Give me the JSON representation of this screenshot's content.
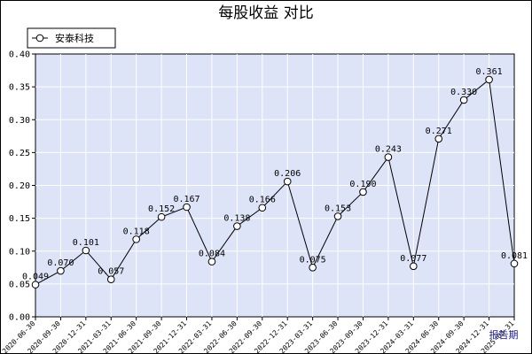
{
  "chart_data": {
    "type": "line",
    "title": "每股收益  对比",
    "unit_label": "报告期",
    "legend": {
      "placement": "top-left",
      "entries": [
        "安泰科技"
      ]
    },
    "ylim": [
      0,
      0.4
    ],
    "yticks": [
      "0.00",
      "0.05",
      "0.10",
      "0.15",
      "0.20",
      "0.25",
      "0.30",
      "0.35",
      "0.40"
    ],
    "grid": true,
    "colors": {
      "plot_bg": "#dde4f8",
      "grid": "#ffffff",
      "line": "#000000"
    },
    "categories": [
      "2020-06-30",
      "2020-09-30",
      "2020-12-31",
      "2021-03-31",
      "2021-06-30",
      "2021-09-30",
      "2021-12-31",
      "2022-03-31",
      "2022-06-30",
      "2022-09-30",
      "2022-12-31",
      "2023-03-31",
      "2023-06-30",
      "2023-09-30",
      "2023-12-31",
      "2024-03-31",
      "2024-06-30",
      "2024-09-30",
      "2024-12-31",
      "2025-03-31"
    ],
    "series": [
      {
        "name": "安泰科技",
        "values": [
          0.049,
          0.07,
          0.101,
          0.057,
          0.118,
          0.152,
          0.167,
          0.084,
          0.138,
          0.166,
          0.206,
          0.075,
          0.153,
          0.19,
          0.243,
          0.077,
          0.271,
          0.33,
          0.361,
          0.081
        ],
        "labels": [
          "0.049",
          "0.070",
          "0.101",
          "0.057",
          "0.118",
          "0.152",
          "0.167",
          "0.084",
          "0.138",
          "0.166",
          "0.206",
          "0.075",
          "0.153",
          "0.190",
          "0.243",
          "0.077",
          "0.271",
          "0.330",
          "0.361",
          "0.081"
        ]
      }
    ]
  }
}
